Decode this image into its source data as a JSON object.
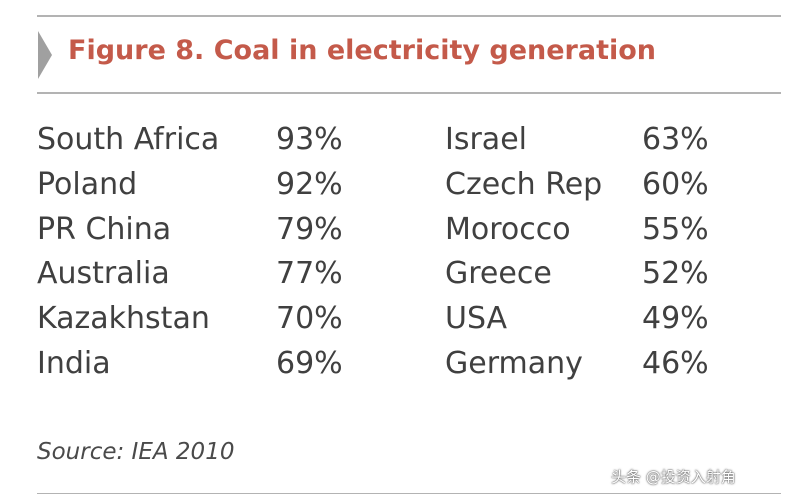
{
  "title": "Figure 8. Coal in electricity generation",
  "chart_data": {
    "type": "table",
    "title": "Figure 8. Coal in electricity generation",
    "columns": [
      {
        "rows": [
          {
            "country": "South Africa",
            "share": "93%",
            "value": 93
          },
          {
            "country": "Poland",
            "share": "92%",
            "value": 92
          },
          {
            "country": "PR China",
            "share": "79%",
            "value": 79
          },
          {
            "country": "Australia",
            "share": "77%",
            "value": 77
          },
          {
            "country": "Kazakhstan",
            "share": "70%",
            "value": 70
          },
          {
            "country": "India",
            "share": "69%",
            "value": 69
          }
        ]
      },
      {
        "rows": [
          {
            "country": "Israel",
            "share": "63%",
            "value": 63
          },
          {
            "country": "Czech Rep",
            "share": "60%",
            "value": 60
          },
          {
            "country": "Morocco",
            "share": "55%",
            "value": 55
          },
          {
            "country": "Greece",
            "share": "52%",
            "value": 52
          },
          {
            "country": "USA",
            "share": "49%",
            "value": 49
          },
          {
            "country": "Germany",
            "share": "46%",
            "value": 46
          }
        ]
      }
    ],
    "source": "Source: IEA 2010"
  },
  "source": "Source: IEA 2010",
  "watermark": "头条 @投资入射角",
  "colors": {
    "title": "#c45a4a",
    "rule": "#b3b3b3",
    "text": "#404040",
    "arrow": "#a0a0a0"
  }
}
